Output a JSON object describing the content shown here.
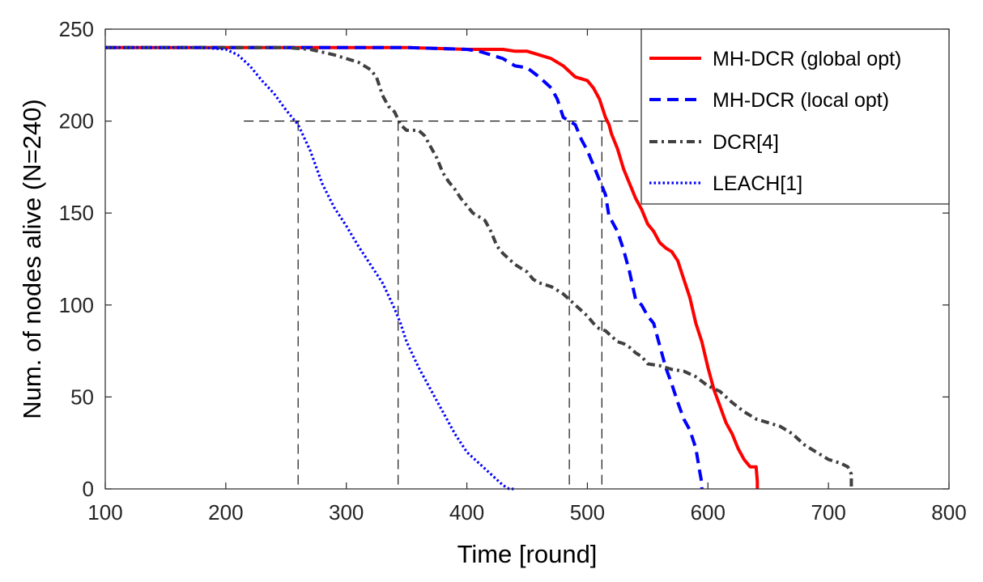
{
  "chart_data": {
    "type": "line",
    "title": "",
    "xlabel": "Time [round]",
    "ylabel": "Num. of nodes alive (N=240)",
    "xlim": [
      100,
      800
    ],
    "ylim": [
      0,
      250
    ],
    "xticks": [
      100,
      200,
      300,
      400,
      500,
      600,
      700,
      800
    ],
    "yticks": [
      0,
      50,
      100,
      150,
      200,
      250
    ],
    "grid": false,
    "legend_position": "top-right",
    "series": [
      {
        "name": "MH-DCR (global opt)",
        "color": "#ff0000",
        "style": "solid",
        "points": [
          [
            100,
            240
          ],
          [
            200,
            240
          ],
          [
            300,
            240
          ],
          [
            350,
            240
          ],
          [
            400,
            239
          ],
          [
            430,
            239
          ],
          [
            440,
            238
          ],
          [
            450,
            238
          ],
          [
            460,
            236
          ],
          [
            470,
            234
          ],
          [
            480,
            230
          ],
          [
            490,
            224
          ],
          [
            500,
            222
          ],
          [
            505,
            218
          ],
          [
            510,
            212
          ],
          [
            515,
            202
          ],
          [
            518,
            198
          ],
          [
            520,
            193
          ],
          [
            525,
            185
          ],
          [
            530,
            174
          ],
          [
            535,
            166
          ],
          [
            540,
            158
          ],
          [
            545,
            152
          ],
          [
            550,
            144
          ],
          [
            555,
            140
          ],
          [
            560,
            134
          ],
          [
            565,
            131
          ],
          [
            570,
            129
          ],
          [
            575,
            124
          ],
          [
            580,
            114
          ],
          [
            585,
            104
          ],
          [
            590,
            90
          ],
          [
            595,
            80
          ],
          [
            600,
            66
          ],
          [
            605,
            54
          ],
          [
            610,
            45
          ],
          [
            615,
            36
          ],
          [
            620,
            30
          ],
          [
            625,
            22
          ],
          [
            630,
            16
          ],
          [
            635,
            12
          ],
          [
            640,
            12
          ],
          [
            641,
            4
          ],
          [
            641,
            0
          ]
        ]
      },
      {
        "name": "MH-DCR (local opt)",
        "color": "#0000ff",
        "style": "dashed",
        "points": [
          [
            100,
            240
          ],
          [
            200,
            240
          ],
          [
            300,
            240
          ],
          [
            350,
            240
          ],
          [
            400,
            239
          ],
          [
            410,
            238
          ],
          [
            420,
            236
          ],
          [
            430,
            234
          ],
          [
            440,
            230
          ],
          [
            450,
            229
          ],
          [
            460,
            224
          ],
          [
            470,
            218
          ],
          [
            475,
            212
          ],
          [
            480,
            202
          ],
          [
            485,
            200
          ],
          [
            490,
            198
          ],
          [
            495,
            190
          ],
          [
            500,
            184
          ],
          [
            505,
            176
          ],
          [
            510,
            168
          ],
          [
            515,
            160
          ],
          [
            518,
            148
          ],
          [
            520,
            146
          ],
          [
            525,
            140
          ],
          [
            530,
            130
          ],
          [
            535,
            118
          ],
          [
            540,
            103
          ],
          [
            545,
            100
          ],
          [
            550,
            94
          ],
          [
            555,
            90
          ],
          [
            560,
            78
          ],
          [
            565,
            66
          ],
          [
            570,
            57
          ],
          [
            575,
            47
          ],
          [
            580,
            38
          ],
          [
            585,
            32
          ],
          [
            590,
            22
          ],
          [
            593,
            10
          ],
          [
            595,
            3
          ],
          [
            595,
            0
          ]
        ]
      },
      {
        "name": "DCR[4]",
        "color": "#404040",
        "style": "dashdot",
        "points": [
          [
            100,
            240
          ],
          [
            200,
            240
          ],
          [
            250,
            240
          ],
          [
            270,
            239
          ],
          [
            290,
            236
          ],
          [
            300,
            234
          ],
          [
            310,
            232
          ],
          [
            315,
            230
          ],
          [
            320,
            228
          ],
          [
            325,
            224
          ],
          [
            330,
            214
          ],
          [
            335,
            208
          ],
          [
            340,
            205
          ],
          [
            345,
            198
          ],
          [
            350,
            195
          ],
          [
            360,
            195
          ],
          [
            365,
            192
          ],
          [
            370,
            186
          ],
          [
            375,
            180
          ],
          [
            380,
            172
          ],
          [
            385,
            167
          ],
          [
            390,
            163
          ],
          [
            395,
            158
          ],
          [
            400,
            154
          ],
          [
            405,
            150
          ],
          [
            410,
            148
          ],
          [
            415,
            146
          ],
          [
            420,
            140
          ],
          [
            425,
            132
          ],
          [
            430,
            128
          ],
          [
            435,
            125
          ],
          [
            440,
            122
          ],
          [
            445,
            120
          ],
          [
            450,
            118
          ],
          [
            455,
            114
          ],
          [
            460,
            112
          ],
          [
            465,
            111
          ],
          [
            470,
            110
          ],
          [
            475,
            108
          ],
          [
            480,
            106
          ],
          [
            485,
            103
          ],
          [
            490,
            100
          ],
          [
            495,
            97
          ],
          [
            500,
            94
          ],
          [
            505,
            90
          ],
          [
            510,
            87
          ],
          [
            515,
            86
          ],
          [
            520,
            83
          ],
          [
            525,
            80
          ],
          [
            530,
            79
          ],
          [
            535,
            77
          ],
          [
            540,
            74
          ],
          [
            545,
            72
          ],
          [
            550,
            68
          ],
          [
            560,
            67
          ],
          [
            570,
            65
          ],
          [
            580,
            64
          ],
          [
            590,
            61
          ],
          [
            600,
            56
          ],
          [
            610,
            53
          ],
          [
            620,
            47
          ],
          [
            630,
            42
          ],
          [
            640,
            38
          ],
          [
            650,
            36
          ],
          [
            660,
            34
          ],
          [
            670,
            30
          ],
          [
            680,
            24
          ],
          [
            690,
            20
          ],
          [
            700,
            16
          ],
          [
            710,
            14
          ],
          [
            716,
            12
          ],
          [
            719,
            8
          ],
          [
            719,
            0
          ]
        ]
      },
      {
        "name": "LEACH[1]",
        "color": "#0000ff",
        "style": "dotted",
        "points": [
          [
            100,
            240
          ],
          [
            180,
            240
          ],
          [
            200,
            239
          ],
          [
            210,
            236
          ],
          [
            220,
            230
          ],
          [
            230,
            222
          ],
          [
            240,
            215
          ],
          [
            250,
            206
          ],
          [
            260,
            198
          ],
          [
            270,
            184
          ],
          [
            280,
            166
          ],
          [
            290,
            153
          ],
          [
            300,
            143
          ],
          [
            310,
            132
          ],
          [
            320,
            122
          ],
          [
            330,
            112
          ],
          [
            340,
            98
          ],
          [
            345,
            90
          ],
          [
            350,
            80
          ],
          [
            360,
            66
          ],
          [
            370,
            54
          ],
          [
            380,
            42
          ],
          [
            390,
            30
          ],
          [
            400,
            20
          ],
          [
            410,
            14
          ],
          [
            420,
            8
          ],
          [
            430,
            2
          ],
          [
            435,
            0
          ],
          [
            440,
            0
          ]
        ]
      }
    ],
    "reference_lines": [
      {
        "x": 260,
        "y": 200,
        "label": ""
      },
      {
        "x": 343,
        "y": 200,
        "label": ""
      },
      {
        "x": 485,
        "y": 200,
        "label": ""
      },
      {
        "x": 512,
        "y": 200,
        "label": ""
      }
    ],
    "reference_h_line": {
      "y": 200,
      "from_x": 215,
      "to_x": 550
    }
  }
}
